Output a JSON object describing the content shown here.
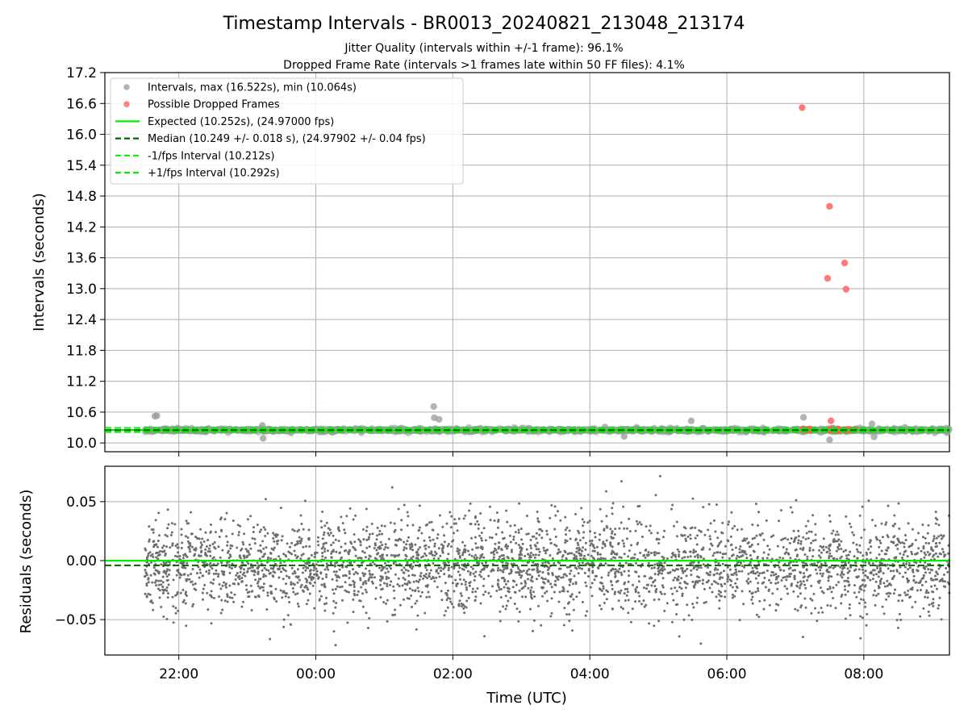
{
  "chart_data": {
    "type": "scatter",
    "title": "Timestamp Intervals - BR0013_20240821_213048_213174",
    "subtitle_lines": [
      "Jitter Quality (intervals within +/-1 frame): 96.1%",
      "Dropped Frame Rate (intervals >1 frames late within 50 FF files): 4.1%"
    ],
    "xlabel": "Time (UTC)",
    "x_ticks": [
      "22:00",
      "00:00",
      "02:00",
      "04:00",
      "06:00",
      "08:00"
    ],
    "x_range_hours": [
      -1.08,
      11.25
    ],
    "x_start_hour": -0.5,
    "x_end_hour": 11.25,
    "top_panel": {
      "ylabel": "Intervals (seconds)",
      "ylim": [
        9.83,
        17.2
      ],
      "y_ticks": [
        "10.0",
        "10.6",
        "11.2",
        "11.8",
        "12.4",
        "13.0",
        "13.6",
        "14.2",
        "14.8",
        "15.4",
        "16.0",
        "16.6",
        "17.2"
      ],
      "grid": true,
      "legend_position": "upper-left",
      "legend": [
        {
          "label": "Intervals, max (16.522s), min (10.064s)",
          "kind": "marker",
          "color": "#9a9a9a"
        },
        {
          "label": "Possible Dropped Frames",
          "kind": "marker",
          "color": "#ff5a5a"
        },
        {
          "label": "Expected (10.252s), (24.97000 fps)",
          "kind": "solid",
          "color": "#00ee00"
        },
        {
          "label": "Median (10.249 +/- 0.018 s), (24.97902 +/- 0.04 fps)",
          "kind": "dashed",
          "color": "#006400"
        },
        {
          "label": "-1/fps Interval (10.212s)",
          "kind": "dashed",
          "color": "#00ee00"
        },
        {
          "label": "+1/fps Interval (10.292s)",
          "kind": "dashed",
          "color": "#00ee00"
        }
      ],
      "expected": 10.252,
      "median": 10.249,
      "minus_interval": 10.212,
      "plus_interval": 10.292,
      "interval_outliers": [
        {
          "x": -0.35,
          "y": 10.52
        },
        {
          "x": -0.32,
          "y": 10.53
        },
        {
          "x": 1.23,
          "y": 10.09
        },
        {
          "x": 1.22,
          "y": 10.34
        },
        {
          "x": 3.72,
          "y": 10.71
        },
        {
          "x": 3.73,
          "y": 10.49
        },
        {
          "x": 3.8,
          "y": 10.46
        },
        {
          "x": 6.22,
          "y": 10.31
        },
        {
          "x": 6.5,
          "y": 10.13
        },
        {
          "x": 7.48,
          "y": 10.43
        },
        {
          "x": 9.12,
          "y": 10.5
        },
        {
          "x": 9.5,
          "y": 10.06
        },
        {
          "x": 10.15,
          "y": 10.12
        },
        {
          "x": 10.12,
          "y": 10.37
        },
        {
          "x": 10.6,
          "y": 10.3
        }
      ],
      "dropped_frames": [
        {
          "x": 9.1,
          "y": 16.52
        },
        {
          "x": 9.5,
          "y": 14.6
        },
        {
          "x": 9.47,
          "y": 13.2
        },
        {
          "x": 9.72,
          "y": 13.5
        },
        {
          "x": 9.74,
          "y": 12.99
        },
        {
          "x": 9.52,
          "y": 10.43
        },
        {
          "x": 9.12,
          "y": 10.27
        },
        {
          "x": 9.17,
          "y": 10.25
        },
        {
          "x": 9.22,
          "y": 10.26
        },
        {
          "x": 9.5,
          "y": 10.26
        },
        {
          "x": 9.56,
          "y": 10.25
        },
        {
          "x": 9.62,
          "y": 10.26
        },
        {
          "x": 9.68,
          "y": 10.25
        },
        {
          "x": 9.75,
          "y": 10.26
        },
        {
          "x": 9.8,
          "y": 10.26
        },
        {
          "x": 9.85,
          "y": 10.25
        }
      ]
    },
    "bottom_panel": {
      "ylabel": "Residuals (seconds)",
      "ylim": [
        -0.08,
        0.08
      ],
      "y_ticks": [
        "0.05",
        "0.00",
        "−0.05"
      ],
      "y_tick_values": [
        0.05,
        0.0,
        -0.05
      ],
      "grid": true,
      "expected_residual": 0.0,
      "median_residual": -0.004,
      "point_count": 3400
    },
    "colors": {
      "interval_points": "#9a9a9a",
      "dropped_points": "#ff5a5a",
      "expected_line": "#00ee00",
      "median_line": "#006400",
      "residual_points": "#6e6e6e"
    }
  }
}
